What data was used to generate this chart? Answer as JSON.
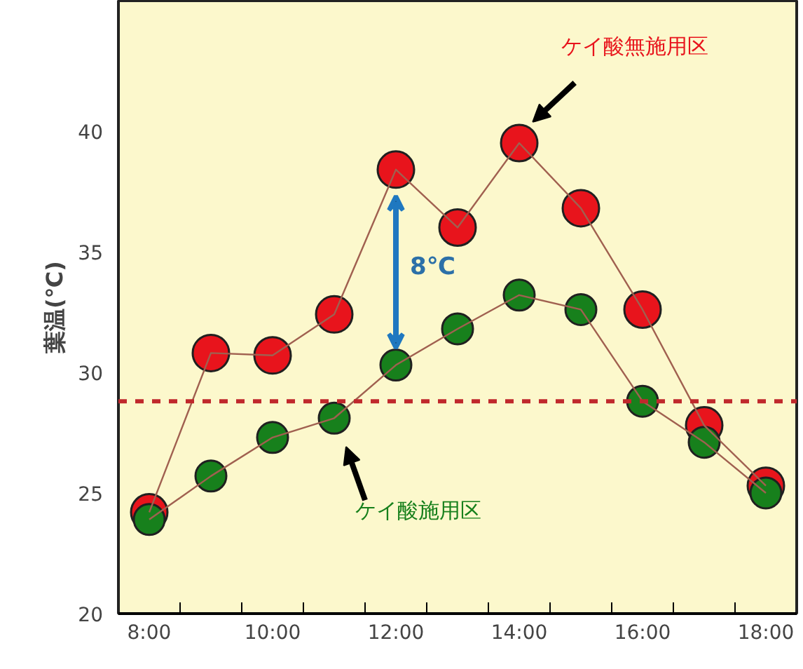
{
  "chart_data": {
    "type": "line",
    "ylabel": "葉温(℃)",
    "x": [
      8,
      9,
      10,
      11,
      12,
      13,
      14,
      15,
      16,
      17,
      18
    ],
    "series": [
      {
        "name": "ケイ酸無施用区",
        "color": "#e8141c",
        "values": [
          24.2,
          30.8,
          30.7,
          32.4,
          38.4,
          36.0,
          39.5,
          36.8,
          32.6,
          27.8,
          25.3
        ]
      },
      {
        "name": "ケイ酸施用区",
        "color": "#17801c",
        "values": [
          23.9,
          25.7,
          27.3,
          28.1,
          30.3,
          31.8,
          33.2,
          32.6,
          28.8,
          27.1,
          25.0
        ]
      }
    ],
    "xlim": [
      7.5,
      18.5
    ],
    "xticks": [
      {
        "value": 8,
        "label": "8:00"
      },
      {
        "value": 8.5,
        "label": null
      },
      {
        "value": 9.5,
        "label": null
      },
      {
        "value": 10,
        "label": "10:00"
      },
      {
        "value": 10.5,
        "label": null
      },
      {
        "value": 11.5,
        "label": null
      },
      {
        "value": 12,
        "label": "12:00"
      },
      {
        "value": 12.5,
        "label": null
      },
      {
        "value": 13.5,
        "label": null
      },
      {
        "value": 14,
        "label": "14:00"
      },
      {
        "value": 14.5,
        "label": null
      },
      {
        "value": 15.5,
        "label": null
      },
      {
        "value": 16,
        "label": "16:00"
      },
      {
        "value": 16.5,
        "label": null
      },
      {
        "value": 17.5,
        "label": null
      },
      {
        "value": 18,
        "label": "18:00"
      }
    ],
    "ylim": [
      20,
      45.4
    ],
    "yticks": [
      20,
      25,
      30,
      35,
      40
    ],
    "ref_lines": [
      {
        "axis": "y",
        "value": 28.8,
        "color": "#c0282c",
        "line_style": "dashed"
      }
    ],
    "annotations": [
      "8℃"
    ],
    "marker": "circle",
    "line_style": "solid",
    "grid": false,
    "legend": false
  }
}
